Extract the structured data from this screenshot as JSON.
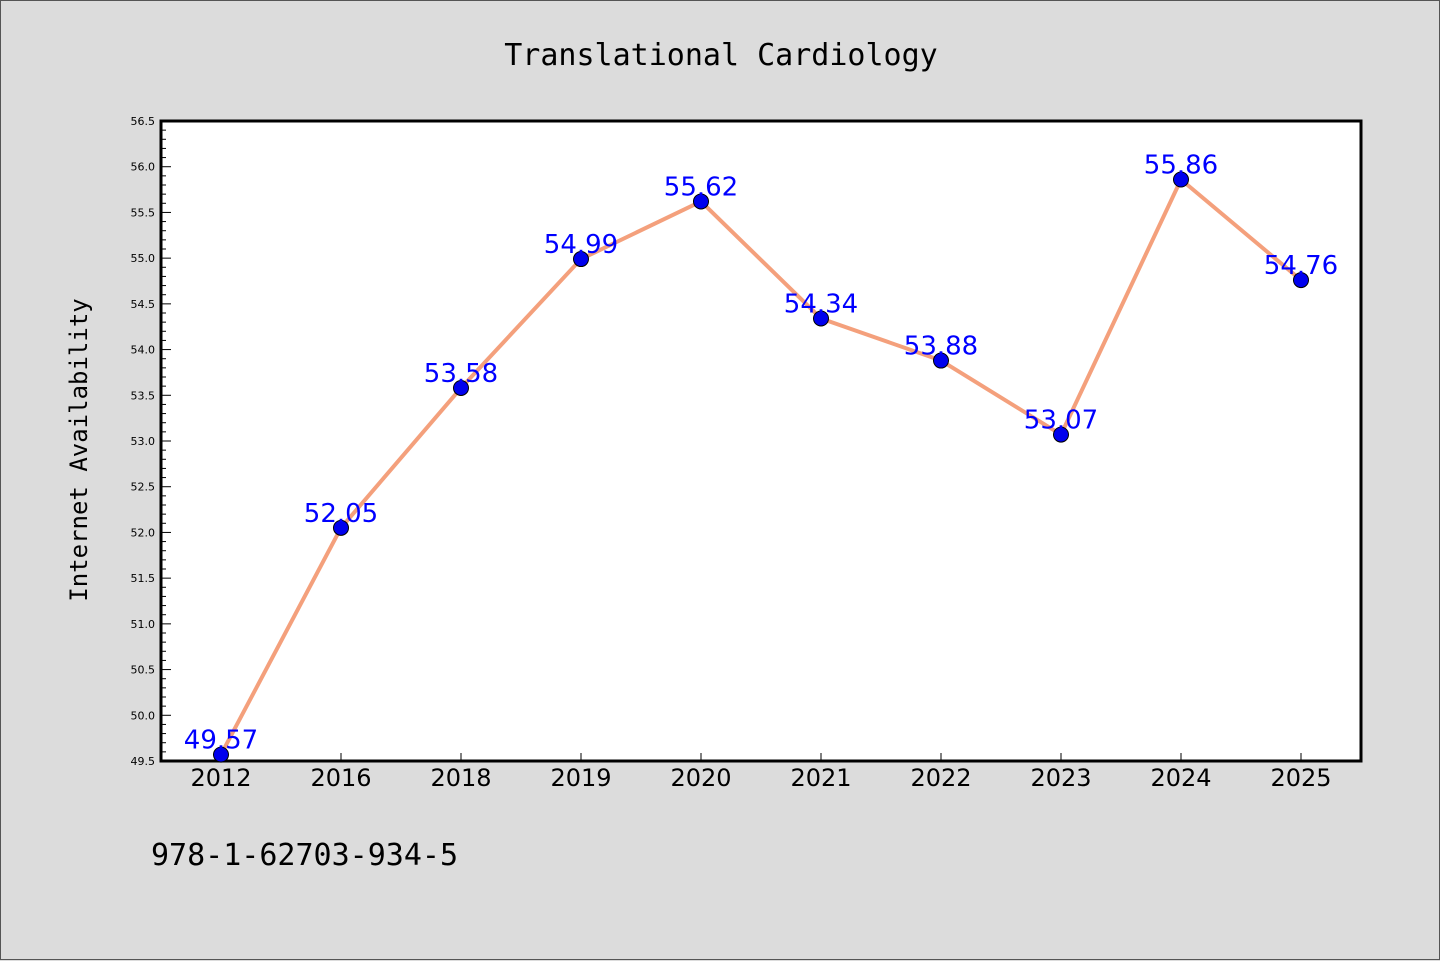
{
  "chart_data": {
    "type": "line",
    "title": "Translational Cardiology",
    "xlabel": "",
    "ylabel": "Internet Availability",
    "categories": [
      "2012",
      "2016",
      "2018",
      "2019",
      "2020",
      "2021",
      "2022",
      "2023",
      "2024",
      "2025"
    ],
    "series": [
      {
        "values": [
          49.57,
          52.05,
          53.58,
          54.99,
          55.62,
          54.34,
          53.88,
          53.07,
          55.86,
          54.76
        ]
      }
    ],
    "data_labels": [
      "49.57",
      "52.05",
      "53.58",
      "54.99",
      "55.62",
      "54.34",
      "53.88",
      "53.07",
      "55.86",
      "54.76"
    ],
    "ylim": [
      49.5,
      56.5
    ],
    "yticks": [
      "49.5",
      "50.0",
      "50.5",
      "51.0",
      "51.5",
      "52.0",
      "52.5",
      "53.0",
      "53.5",
      "54.0",
      "54.5",
      "55.0",
      "55.5",
      "56.0",
      "56.5"
    ],
    "grid": false,
    "legend": "none"
  },
  "footer": {
    "isbn": "978-1-62703-934-5"
  },
  "colors": {
    "line": "#f4a07c",
    "marker": "#0000ee",
    "data_label": "#0000ff",
    "background": "#dcdcdc",
    "plot_background": "#ffffff"
  }
}
